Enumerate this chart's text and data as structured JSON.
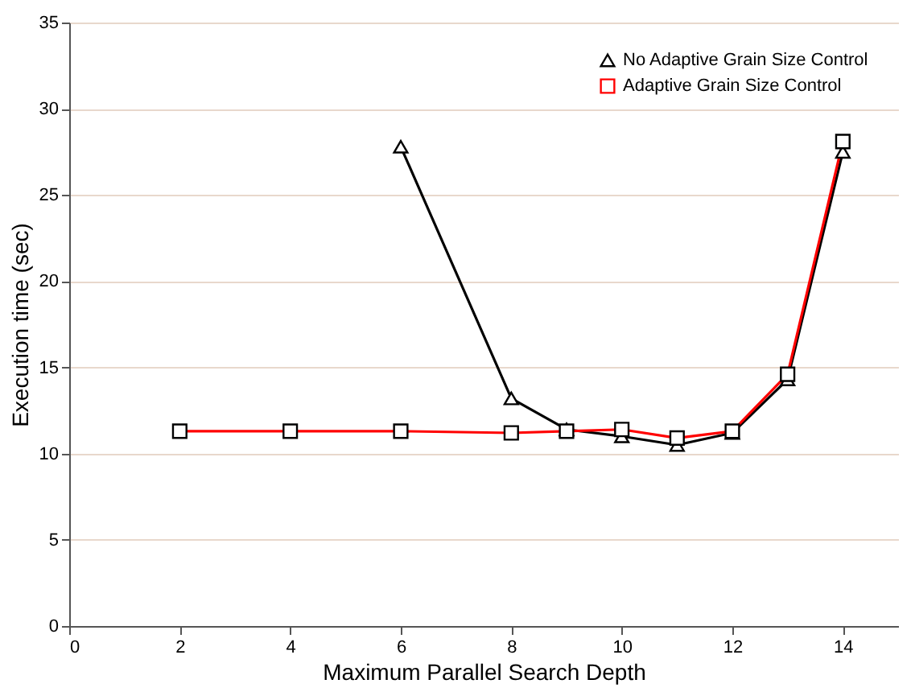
{
  "chart_data": {
    "type": "line",
    "xlabel": "Maximum Parallel Search Depth",
    "ylabel": "Execution time (sec)",
    "xlim": [
      0,
      15
    ],
    "xticks": [
      0,
      2,
      4,
      6,
      8,
      10,
      12,
      14
    ],
    "ylim": [
      0,
      35
    ],
    "yticks": [
      0,
      5,
      10,
      15,
      20,
      25,
      30,
      35
    ],
    "grid": "y",
    "legend": "top right",
    "line_style": "solid",
    "series": [
      {
        "name": "No Adaptive Grain Size Control",
        "color": "#000000",
        "marker": "triangle",
        "x": [
          6,
          8,
          9,
          10,
          11,
          12,
          13,
          14
        ],
        "values": [
          27.8,
          13.2,
          11.4,
          11.0,
          10.5,
          11.2,
          14.3,
          27.5
        ]
      },
      {
        "name": "Adaptive Grain Size Control",
        "color": "#ff0000",
        "marker": "square",
        "x": [
          2,
          4,
          6,
          8,
          9,
          10,
          11,
          12,
          13,
          14
        ],
        "values": [
          11.3,
          11.3,
          11.3,
          11.2,
          11.3,
          11.4,
          10.9,
          11.3,
          14.6,
          28.1
        ]
      }
    ]
  }
}
